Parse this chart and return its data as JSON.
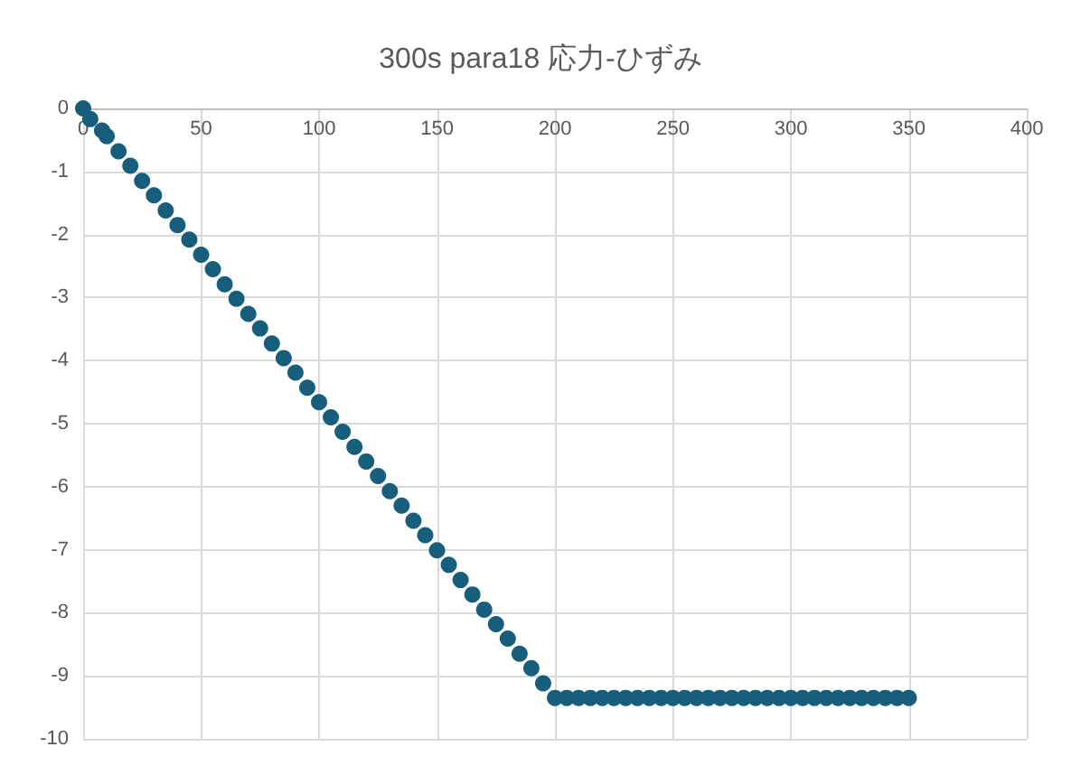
{
  "chart_data": {
    "type": "scatter",
    "title": "300s para18 応力-ひずみ",
    "x": [
      0,
      3,
      8,
      10,
      15,
      20,
      25,
      30,
      35,
      40,
      45,
      50,
      55,
      60,
      65,
      70,
      75,
      80,
      85,
      90,
      95,
      100,
      105,
      110,
      115,
      120,
      125,
      130,
      135,
      140,
      145,
      150,
      155,
      160,
      165,
      170,
      175,
      180,
      185,
      190,
      195,
      200,
      205,
      210,
      215,
      220,
      225,
      230,
      235,
      240,
      245,
      250,
      255,
      260,
      265,
      270,
      275,
      280,
      285,
      290,
      295,
      300,
      305,
      310,
      315,
      320,
      325,
      330,
      335,
      340,
      345,
      350
    ],
    "series": [
      {
        "color": "#175e7c",
        "values": [
          0,
          -0.17,
          -0.35,
          -0.44,
          -0.68,
          -0.91,
          -1.15,
          -1.38,
          -1.62,
          -1.85,
          -2.08,
          -2.32,
          -2.55,
          -2.79,
          -3.02,
          -3.26,
          -3.49,
          -3.73,
          -3.96,
          -4.19,
          -4.43,
          -4.66,
          -4.9,
          -5.13,
          -5.37,
          -5.6,
          -5.83,
          -6.07,
          -6.3,
          -6.54,
          -6.77,
          -7.01,
          -7.24,
          -7.48,
          -7.71,
          -7.95,
          -8.18,
          -8.41,
          -8.65,
          -8.88,
          -9.12,
          -9.35,
          -9.35,
          -9.35,
          -9.35,
          -9.35,
          -9.35,
          -9.35,
          -9.35,
          -9.35,
          -9.35,
          -9.35,
          -9.35,
          -9.35,
          -9.35,
          -9.35,
          -9.35,
          -9.35,
          -9.35,
          -9.35,
          -9.35,
          -9.35,
          -9.35,
          -9.35,
          -9.35,
          -9.35,
          -9.35,
          -9.35,
          -9.35,
          -9.35,
          -9.35,
          -9.35
        ]
      }
    ],
    "xlim": [
      0,
      400
    ],
    "xticks": [
      0,
      50,
      100,
      150,
      200,
      250,
      300,
      350,
      400
    ],
    "ylim": [
      -10,
      0
    ],
    "yticks": [
      -10,
      -9,
      -8,
      -7,
      -6,
      -5,
      -4,
      -3,
      -2,
      -1,
      0
    ],
    "grid": true,
    "marker": "circle"
  }
}
